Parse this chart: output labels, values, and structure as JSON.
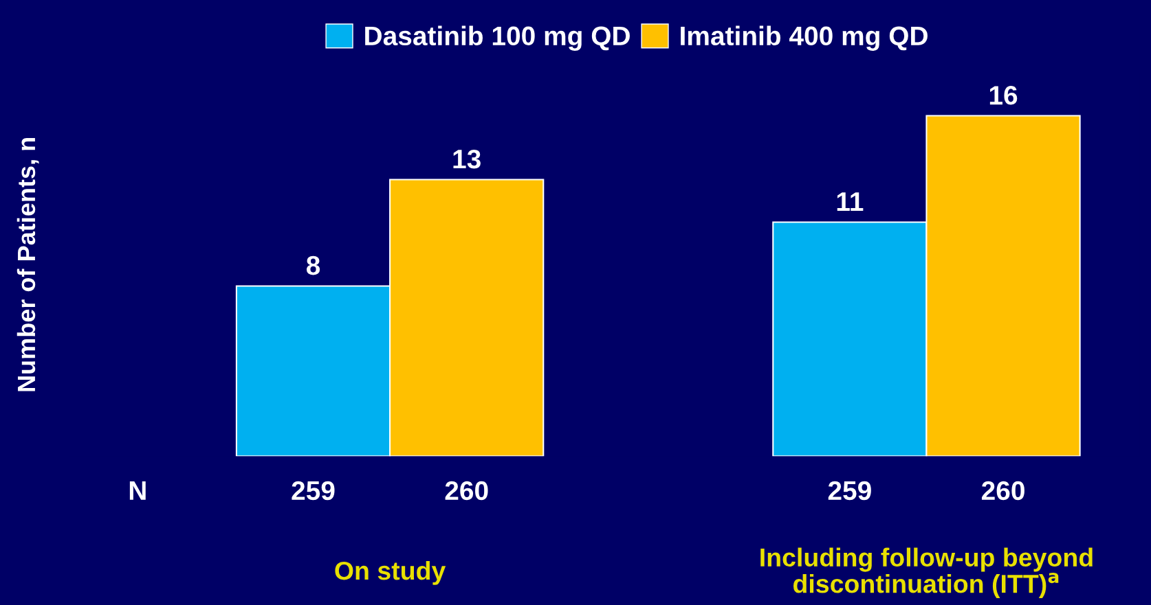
{
  "chart_data": {
    "type": "bar",
    "ylabel": "Number of Patients, n",
    "categories": [
      "On study",
      "Including follow-up beyond\ndiscontinuation (ITT)$^{a}$"
    ],
    "series": [
      {
        "name": "Dasatinib 100 mg QD",
        "color": "#00b0f0",
        "values": [
          8,
          11
        ]
      },
      {
        "name": "Imatinib 400 mg QD",
        "color": "#ffc000",
        "values": [
          13,
          16
        ]
      }
    ],
    "data_labels": true,
    "legend": "top",
    "annotations": [
      "N",
      "259",
      "260",
      "259",
      "260"
    ]
  }
}
